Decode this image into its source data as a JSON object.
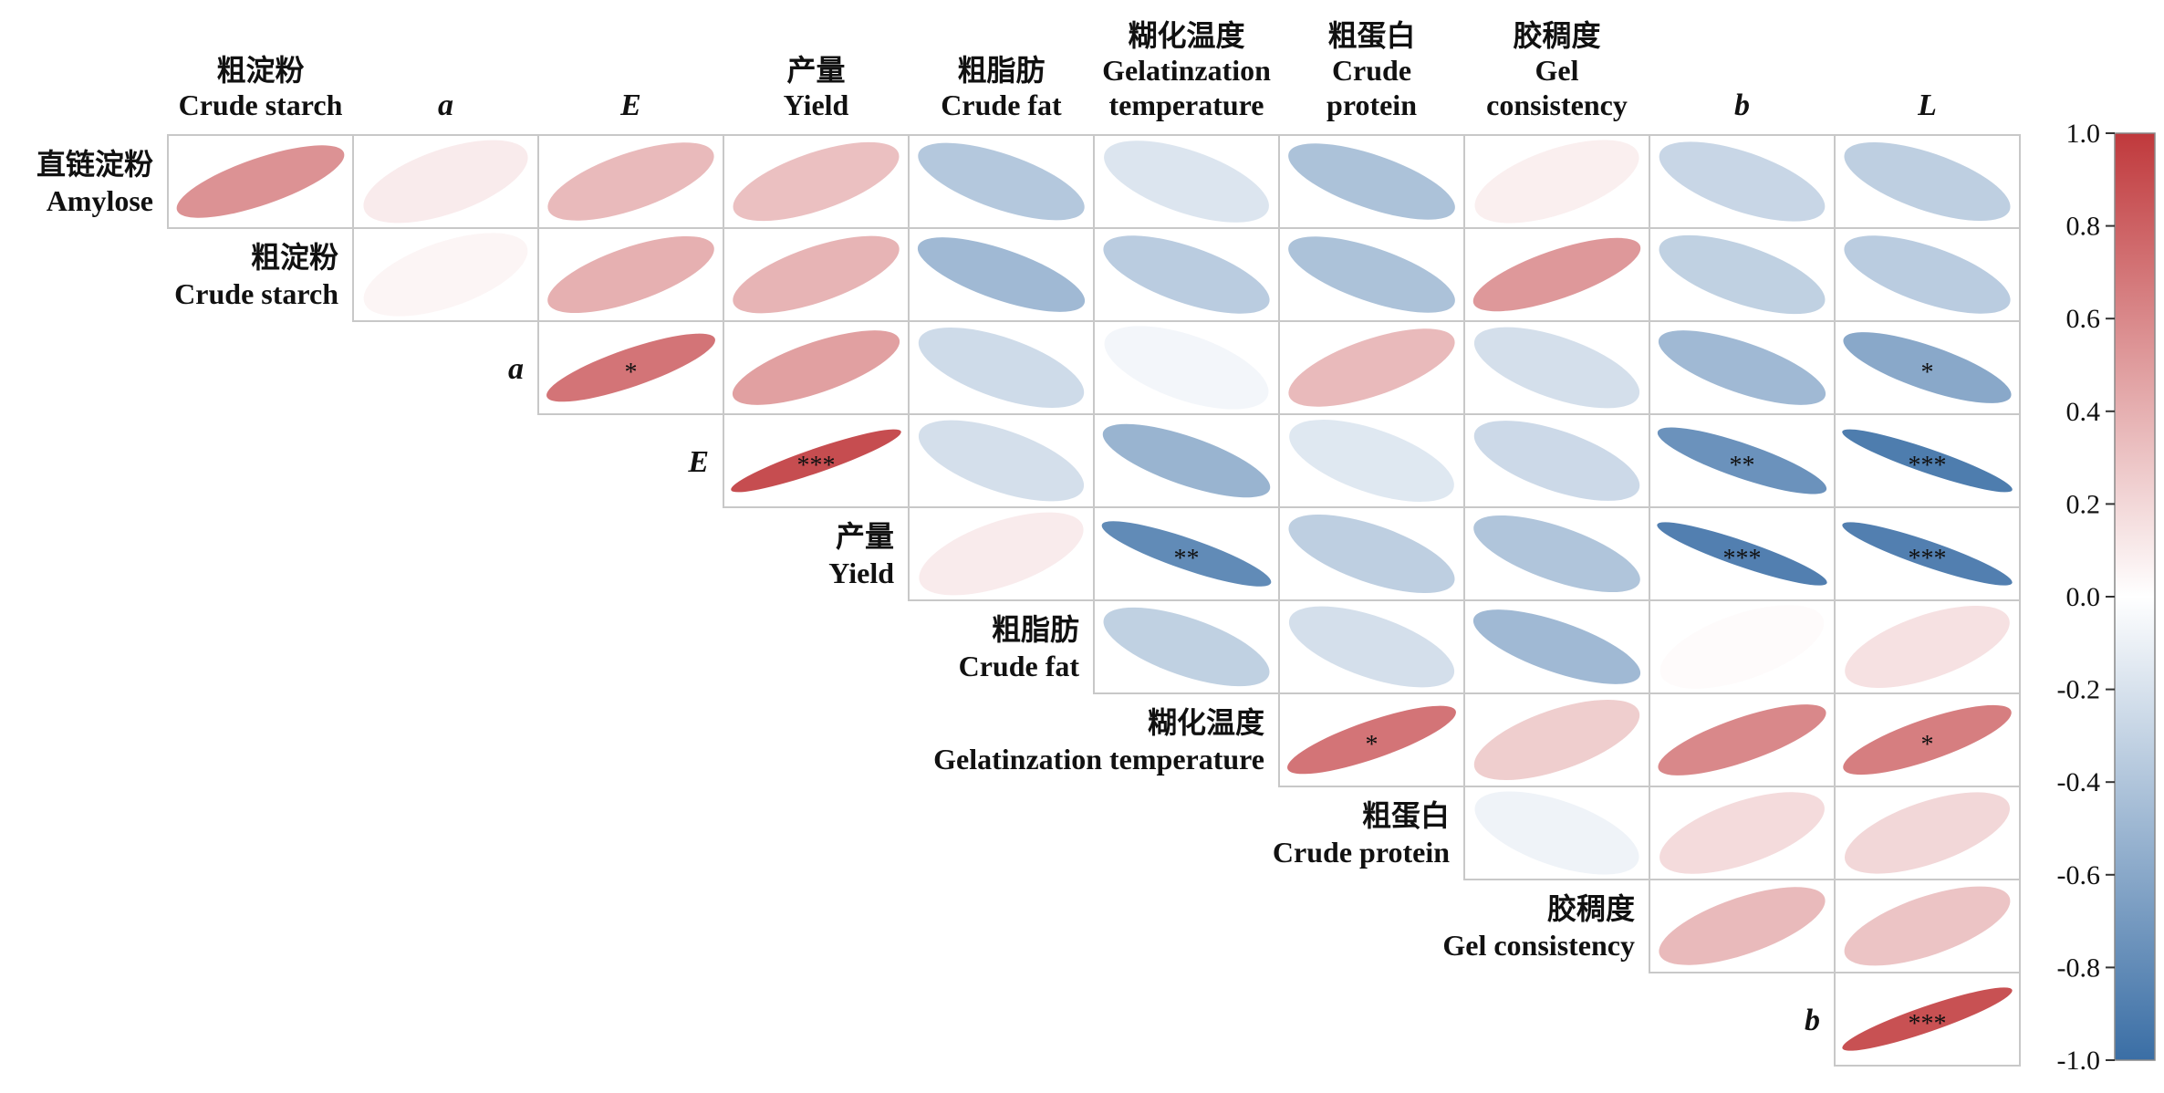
{
  "chart_data": {
    "type": "correlation-ellipse-matrix",
    "variables": [
      {
        "zh": "直链淀粉",
        "en": "Amylose",
        "italic": false
      },
      {
        "zh": "粗淀粉",
        "en": "Crude starch",
        "italic": false
      },
      {
        "zh": "",
        "en": "a",
        "italic": true
      },
      {
        "zh": "",
        "en": "E",
        "italic": true
      },
      {
        "zh": "产量",
        "en": "Yield",
        "italic": false
      },
      {
        "zh": "粗脂肪",
        "en": "Crude fat",
        "italic": false
      },
      {
        "zh": "糊化温度",
        "en": "Gelatinzation temperature",
        "italic": false
      },
      {
        "zh": "粗蛋白",
        "en": "Crude protein",
        "italic": false
      },
      {
        "zh": "胶稠度",
        "en": "Gel consistency",
        "italic": false
      },
      {
        "zh": "",
        "en": "b",
        "italic": true
      },
      {
        "zh": "",
        "en": "L",
        "italic": true
      }
    ],
    "column_headers": [
      {
        "lines": [
          "粗淀粉",
          "Crude starch"
        ],
        "italic": false
      },
      {
        "lines": [
          "a"
        ],
        "italic": true
      },
      {
        "lines": [
          "E"
        ],
        "italic": true
      },
      {
        "lines": [
          "产量",
          "Yield"
        ],
        "italic": false
      },
      {
        "lines": [
          "粗脂肪",
          "Crude fat"
        ],
        "italic": false
      },
      {
        "lines": [
          "糊化温度",
          "Gelatinzation",
          "temperature"
        ],
        "italic": false
      },
      {
        "lines": [
          "粗蛋白",
          "Crude",
          "protein"
        ],
        "italic": false
      },
      {
        "lines": [
          "胶稠度",
          "Gel",
          "consistency"
        ],
        "italic": false
      },
      {
        "lines": [
          "b"
        ],
        "italic": true
      },
      {
        "lines": [
          "L"
        ],
        "italic": true
      }
    ],
    "row_headers": [
      {
        "lines": [
          "直链淀粉",
          "Amylose"
        ],
        "italic": false
      },
      {
        "lines": [
          "粗淀粉",
          "Crude starch"
        ],
        "italic": false
      },
      {
        "lines": [
          "a"
        ],
        "italic": true
      },
      {
        "lines": [
          "E"
        ],
        "italic": true
      },
      {
        "lines": [
          "产量",
          "Yield"
        ],
        "italic": false
      },
      {
        "lines": [
          "粗脂肪",
          "Crude fat"
        ],
        "italic": false
      },
      {
        "lines": [
          "糊化温度",
          "Gelatinzation temperature"
        ],
        "italic": false
      },
      {
        "lines": [
          "粗蛋白",
          "Crude protein"
        ],
        "italic": false
      },
      {
        "lines": [
          "胶稠度",
          "Gel consistency"
        ],
        "italic": false
      },
      {
        "lines": [
          "b"
        ],
        "italic": true
      }
    ],
    "correlations": [
      [
        0.55,
        0.1,
        0.35,
        0.32,
        -0.38,
        -0.18,
        -0.42,
        0.08,
        -0.28,
        -0.33
      ],
      [
        null,
        0.05,
        0.4,
        0.38,
        -0.48,
        -0.35,
        -0.42,
        0.52,
        -0.32,
        -0.35
      ],
      [
        null,
        null,
        0.7,
        0.48,
        -0.25,
        -0.06,
        0.35,
        -0.22,
        -0.48,
        -0.6
      ],
      [
        null,
        null,
        null,
        0.9,
        -0.22,
        -0.52,
        -0.16,
        -0.26,
        -0.75,
        -0.9
      ],
      [
        null,
        null,
        null,
        null,
        0.1,
        -0.8,
        -0.33,
        -0.4,
        -0.88,
        -0.88
      ],
      [
        null,
        null,
        null,
        null,
        null,
        -0.32,
        -0.22,
        -0.48,
        0.02,
        0.15
      ],
      [
        null,
        null,
        null,
        null,
        null,
        null,
        0.7,
        0.25,
        0.6,
        0.65
      ],
      [
        null,
        null,
        null,
        null,
        null,
        null,
        null,
        -0.08,
        0.18,
        0.2
      ],
      [
        null,
        null,
        null,
        null,
        null,
        null,
        null,
        null,
        0.35,
        0.3
      ],
      [
        null,
        null,
        null,
        null,
        null,
        null,
        null,
        null,
        null,
        0.88
      ]
    ],
    "significance": [
      [
        "",
        "",
        "",
        "",
        "",
        "",
        "",
        "",
        "",
        ""
      ],
      [
        "",
        "",
        "",
        "",
        "",
        "",
        "",
        "",
        "",
        ""
      ],
      [
        "",
        "",
        "*",
        "",
        "",
        "",
        "",
        "",
        "",
        "*"
      ],
      [
        "",
        "",
        "",
        "***",
        "",
        "",
        "",
        "",
        "**",
        "***"
      ],
      [
        "",
        "",
        "",
        "",
        "",
        "**",
        "",
        "",
        "***",
        "***"
      ],
      [
        "",
        "",
        "",
        "",
        "",
        "",
        "",
        "",
        "",
        ""
      ],
      [
        "",
        "",
        "",
        "",
        "",
        "",
        "*",
        "",
        "",
        "*"
      ],
      [
        "",
        "",
        "",
        "",
        "",
        "",
        "",
        "",
        "",
        ""
      ],
      [
        "",
        "",
        "",
        "",
        "",
        "",
        "",
        "",
        "",
        ""
      ],
      [
        "",
        "",
        "",
        "",
        "",
        "",
        "",
        "",
        "",
        "***"
      ]
    ],
    "colorbar": {
      "min": -1.0,
      "max": 1.0,
      "ticks": [
        "1.0",
        "0.8",
        "0.6",
        "0.4",
        "0.2",
        "0.0",
        "-0.2",
        "-0.4",
        "-0.6",
        "-0.8",
        "-1.0"
      ],
      "colors": {
        "negative": "#3a6ea5",
        "zero": "#ffffff",
        "positive": "#c0393c"
      }
    },
    "grid_color": "#c8c8c8"
  }
}
